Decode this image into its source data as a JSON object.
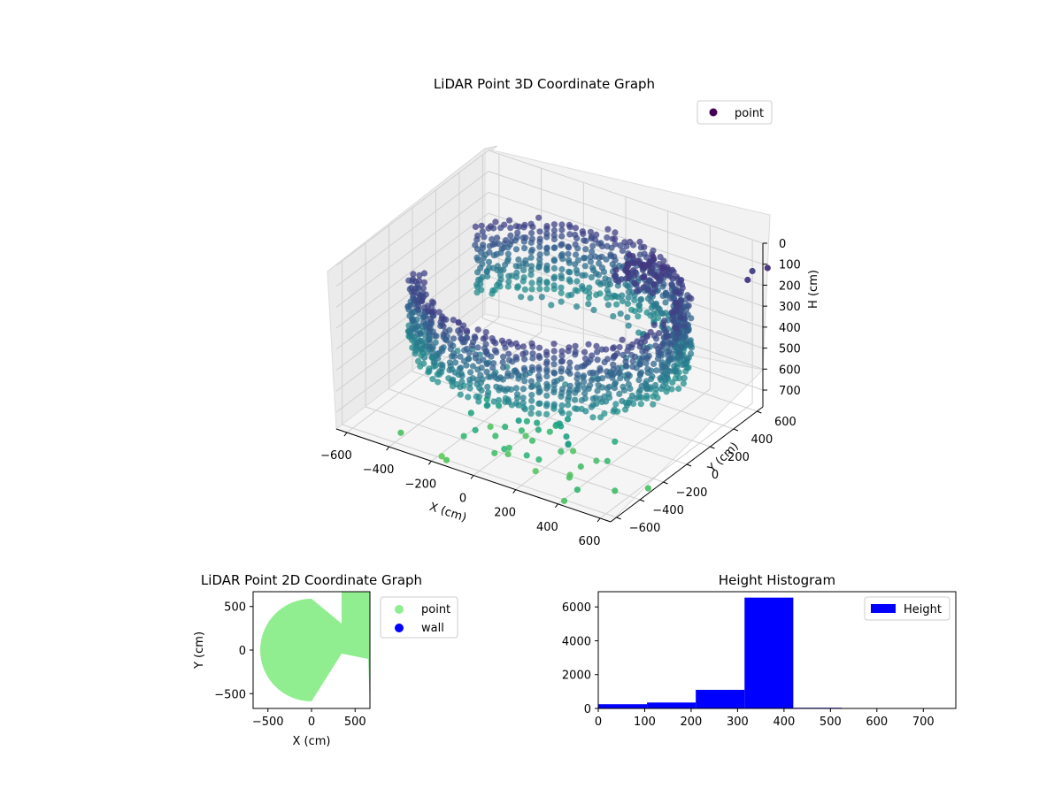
{
  "chart_data": [
    {
      "type": "scatter",
      "projection": "3d",
      "title": "LiDAR Point 3D Coordinate Graph",
      "xlabel": "X (cm)",
      "ylabel": "Y (cm)",
      "zlabel": "H (cm)",
      "xticks": [
        "−600",
        "−400",
        "−200",
        "0",
        "200",
        "400",
        "600"
      ],
      "yticks": [
        "−600",
        "−400",
        "−200",
        "0",
        "200",
        "400",
        "600"
      ],
      "zticks": [
        "0",
        "100",
        "200",
        "300",
        "400",
        "500",
        "600",
        "700"
      ],
      "xlim": [
        -650,
        650
      ],
      "ylim": [
        -650,
        650
      ],
      "zlim": [
        780,
        0
      ],
      "z_inverted": true,
      "colormap": "viridis",
      "grid": true,
      "legend": {
        "entries": [
          "point"
        ],
        "placement": "top-right",
        "color": "#440154"
      },
      "series": [
        {
          "name": "point",
          "shape": "ring of points around the sensor, approx. radius 560 cm, open toward +X",
          "x": [
            -560,
            -540,
            -480,
            -400,
            -300,
            -200,
            -100,
            0,
            100,
            200,
            300,
            400,
            -560,
            -520,
            -450,
            350,
            450,
            520,
            560
          ],
          "y": [
            0,
            150,
            300,
            420,
            500,
            540,
            560,
            560,
            540,
            500,
            440,
            380,
            -150,
            -280,
            -400,
            -420,
            -350,
            -250,
            200
          ],
          "h": [
            330,
            340,
            300,
            290,
            280,
            270,
            260,
            250,
            240,
            230,
            220,
            210,
            360,
            380,
            400,
            410,
            420,
            430,
            200
          ]
        }
      ]
    },
    {
      "type": "scatter",
      "title": "LiDAR Point 2D Coordinate Graph",
      "xlabel": "X (cm)",
      "ylabel": "Y (cm)",
      "xticks": [
        "−500",
        "0",
        "500"
      ],
      "yticks": [
        "500",
        "0",
        "−500"
      ],
      "xlim": [
        -670,
        670
      ],
      "ylim": [
        -670,
        670
      ],
      "legend": {
        "placement": "outside-right"
      },
      "series": [
        {
          "name": "point",
          "color": "#90ee90",
          "shape": "filled disc of radius about 580 cm with a wedge open toward +X"
        },
        {
          "name": "wall",
          "color": "#0000ff"
        }
      ]
    },
    {
      "type": "bar",
      "subtype": "histogram",
      "title": "Height Histogram",
      "xlabel": "",
      "ylabel": "",
      "xticks": [
        "0",
        "100",
        "200",
        "300",
        "400",
        "500",
        "600",
        "700"
      ],
      "yticks": [
        "0",
        "2000",
        "4000",
        "6000"
      ],
      "xlim": [
        0,
        770
      ],
      "ylim": [
        0,
        6900
      ],
      "legend": {
        "entries": [
          "Height"
        ],
        "placement": "top-right"
      },
      "color": "#0000ff",
      "series": [
        {
          "name": "Height",
          "bins": [
            [
              0,
              105
            ],
            [
              105,
              210
            ],
            [
              210,
              315
            ],
            [
              315,
              420
            ],
            [
              420,
              525
            ],
            [
              525,
              630
            ],
            [
              630,
              735
            ]
          ],
          "values": [
            250,
            350,
            1100,
            6550,
            40,
            10,
            5
          ]
        }
      ]
    }
  ]
}
